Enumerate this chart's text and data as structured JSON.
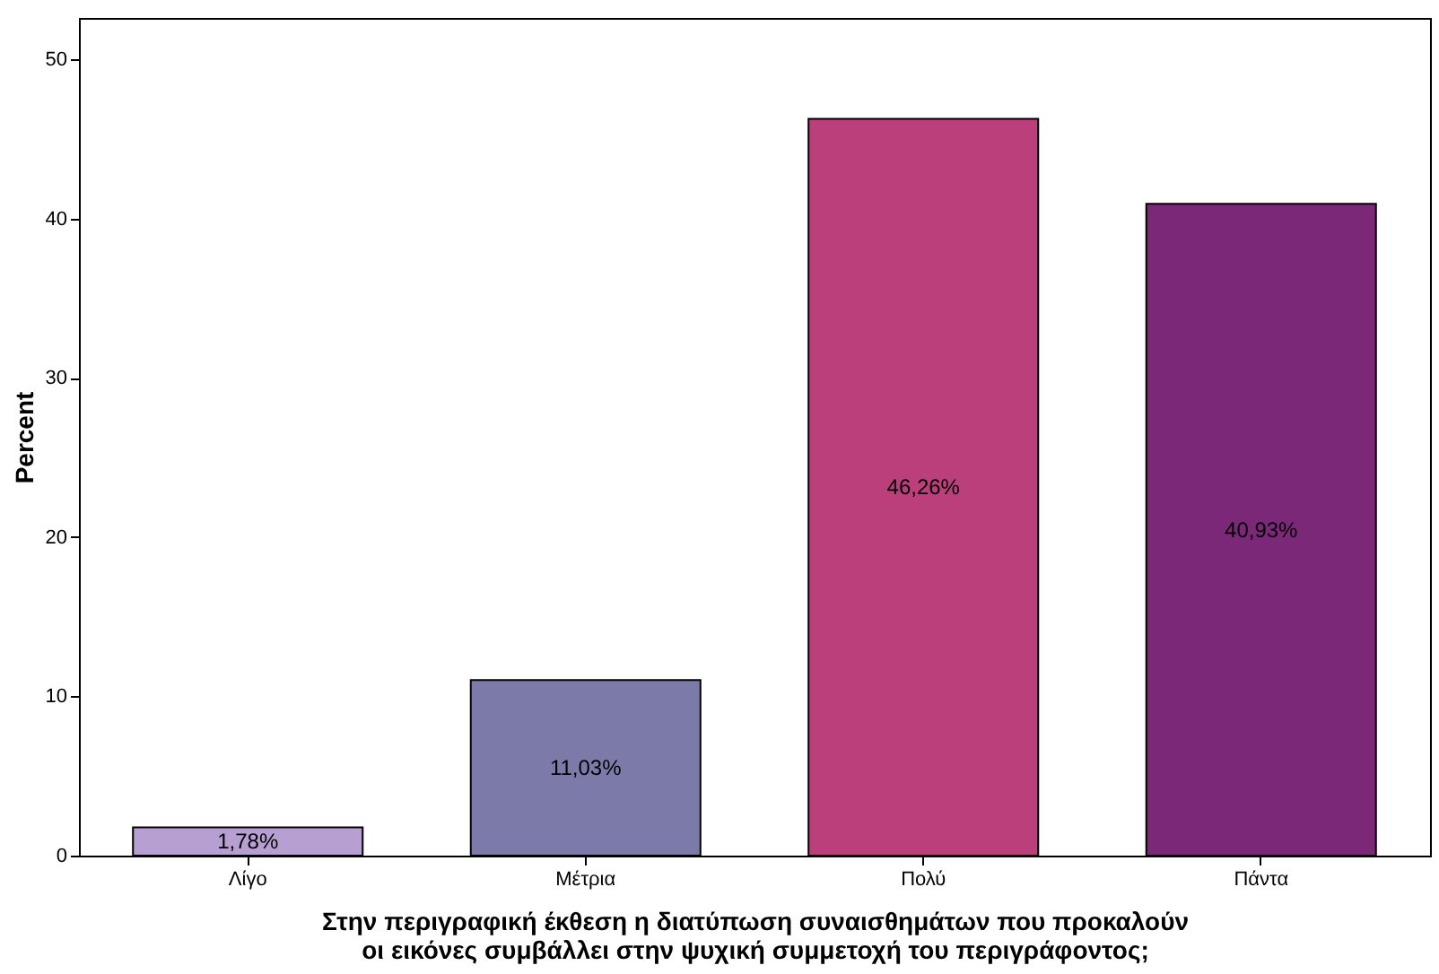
{
  "chart_data": {
    "type": "bar",
    "xlabel": "Στην περιγραφική έκθεση η διατύπωση συναισθημάτων που προκαλούν οι εικόνες συμβάλλει στην ψυχική συμμετοχή του περιγράφοντος;",
    "ylabel": "Percent",
    "categories": [
      "Λίγο",
      "Μέτρια",
      "Πολύ",
      "Πάντα"
    ],
    "values": [
      1.78,
      11.03,
      46.26,
      40.93
    ],
    "colors": [
      "#b89fd1",
      "#7b7aa8",
      "#bb3f7b",
      "#7b2878"
    ],
    "value_labels": [
      "1,78%",
      "11,03%",
      "46,26%",
      "40,93%"
    ],
    "ylim": [
      0,
      52.6
    ],
    "yticks": [
      0,
      10,
      20,
      30,
      40,
      50
    ]
  }
}
